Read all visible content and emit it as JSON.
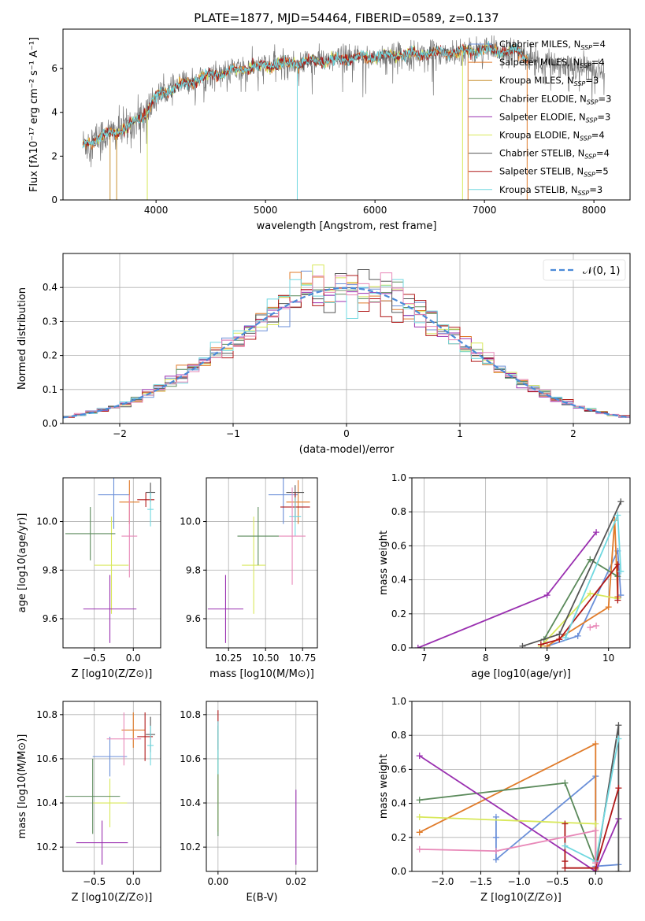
{
  "title": "PLATE=1877, MJD=54464, FIBERID=0589, z=0.137",
  "colors": {
    "Chabrier MILES": "#6a8fd8",
    "Salpeter MILES": "#e07b2a",
    "Kroupa MILES": "#c89030",
    "Chabrier ELODIE": "#5b8a5b",
    "Salpeter ELODIE": "#9a30b0",
    "Kroupa ELODIE": "#d8e85a",
    "Chabrier STELIB": "#555555",
    "Salpeter STELIB": "#b01818",
    "Kroupa STELIB": "#70d8e0",
    "Pink": "#e888b8",
    "Gauss": "#4a8ad8"
  },
  "chart_data": [
    {
      "type": "line",
      "id": "spectrum",
      "title": "PLATE=1877, MJD=54464, FIBERID=0589, z=0.137",
      "xlabel": "wavelength [Angstrom, rest frame]",
      "ylabel": "Flux [fλ10⁻¹⁷ erg cm⁻² s⁻¹ A⁻¹]",
      "xlim": [
        3150,
        8330
      ],
      "ylim": [
        0,
        7.8
      ],
      "xticks": [
        "4000",
        "5000",
        "6000",
        "7000",
        "8000"
      ],
      "yticks": [
        "0",
        "2",
        "4",
        "6"
      ],
      "legend_position": "right",
      "legend": [
        {
          "prefix": "Chabrier MILES, N",
          "sub": "SSP",
          "suffix": "=4"
        },
        {
          "prefix": "Salpeter MILES, N",
          "sub": "SSP",
          "suffix": "=4"
        },
        {
          "prefix": "Kroupa MILES, N",
          "sub": "SSP",
          "suffix": "=3"
        },
        {
          "prefix": "Chabrier ELODIE, N",
          "sub": "SSP",
          "suffix": "=3"
        },
        {
          "prefix": "Salpeter ELODIE, N",
          "sub": "SSP",
          "suffix": "=3"
        },
        {
          "prefix": "Kroupa ELODIE, N",
          "sub": "SSP",
          "suffix": "=4"
        },
        {
          "prefix": "Chabrier STELIB, N",
          "sub": "SSP",
          "suffix": "=4"
        },
        {
          "prefix": "Salpeter STELIB, N",
          "sub": "SSP",
          "suffix": "=5"
        },
        {
          "prefix": "Kroupa STELIB, N",
          "sub": "SSP",
          "suffix": "=3"
        }
      ],
      "continuum": {
        "x": [
          3330,
          3500,
          3700,
          3900,
          4000,
          4200,
          4500,
          5000,
          5500,
          6000,
          6500,
          7000,
          7300,
          7500,
          8000,
          8100
        ],
        "y": [
          2.5,
          2.9,
          3.2,
          3.9,
          4.7,
          5.2,
          5.7,
          6.15,
          6.35,
          6.55,
          6.7,
          6.85,
          6.75,
          6.3,
          6.0,
          5.9
        ]
      },
      "data_range": [
        3330,
        8100
      ],
      "model_range": [
        3330,
        7400
      ],
      "dips": [
        {
          "x": 3580,
          "y": 0,
          "series": "Kroupa MILES"
        },
        {
          "x": 3640,
          "y": 0,
          "series": "Kroupa MILES"
        },
        {
          "x": 3920,
          "y": 0,
          "series": "Kroupa ELODIE"
        },
        {
          "x": 5290,
          "y": 0,
          "series": "Kroupa STELIB"
        },
        {
          "x": 6800,
          "y": 0,
          "series": "Kroupa ELODIE"
        },
        {
          "x": 6850,
          "y": 0,
          "series": "Salpeter MILES"
        },
        {
          "x": 7390,
          "y": 0,
          "series": "Salpeter MILES"
        }
      ]
    },
    {
      "type": "histogram",
      "id": "residuals",
      "xlabel": "(data-model)/error",
      "ylabel": "Normed distribution",
      "xlim": [
        -2.5,
        2.5
      ],
      "ylim": [
        0,
        0.5
      ],
      "xticks": [
        "−2",
        "−1",
        "0",
        "1",
        "2"
      ],
      "yticks": [
        "0.0",
        "0.1",
        "0.2",
        "0.3",
        "0.4"
      ],
      "legend_position": "upper right",
      "legend": [
        {
          "label": "𝒩(0, 1)",
          "series": "Gauss",
          "style": "dashed"
        }
      ],
      "bin_width": 0.1,
      "series_colors": [
        "Chabrier MILES",
        "Salpeter MILES",
        "Chabrier ELODIE",
        "Salpeter ELODIE",
        "Kroupa ELODIE",
        "Chabrier STELIB",
        "Salpeter STELIB",
        "Kroupa STELIB",
        "Pink"
      ]
    },
    {
      "type": "scatter",
      "id": "age_vs_Z",
      "xlabel": "Z [log10(Z/Z⊙)]",
      "ylabel": "age  [log10(age/yr)]",
      "xlim": [
        -0.9,
        0.35
      ],
      "ylim": [
        9.48,
        10.18
      ],
      "xticks": [
        "−0.5",
        "0.0"
      ],
      "yticks": [
        "9.6",
        "9.8",
        "10.0"
      ],
      "points": [
        {
          "series": "Chabrier MILES",
          "x": -0.25,
          "y": 10.11,
          "xerr": 0.2,
          "yerr": 0.14
        },
        {
          "series": "Salpeter MILES",
          "x": -0.05,
          "y": 10.08,
          "xerr": 0.13,
          "yerr": 0.09
        },
        {
          "series": "Kroupa ELODIE",
          "x": -0.28,
          "y": 9.82,
          "xerr": 0.22,
          "yerr": 0.2
        },
        {
          "series": "Chabrier ELODIE",
          "x": -0.55,
          "y": 9.95,
          "xerr": 0.32,
          "yerr": 0.11
        },
        {
          "series": "Salpeter ELODIE",
          "x": -0.3,
          "y": 9.64,
          "xerr": 0.34,
          "yerr": 0.14
        },
        {
          "series": "Chabrier STELIB",
          "x": 0.22,
          "y": 10.12,
          "xerr": 0.06,
          "yerr": 0.04
        },
        {
          "series": "Salpeter STELIB",
          "x": 0.16,
          "y": 10.09,
          "xerr": 0.11,
          "yerr": 0.03
        },
        {
          "series": "Kroupa STELIB",
          "x": 0.22,
          "y": 10.05,
          "xerr": 0.04,
          "yerr": 0.07
        },
        {
          "series": "Pink",
          "x": -0.05,
          "y": 9.94,
          "xerr": 0.1,
          "yerr": 0.17
        }
      ]
    },
    {
      "type": "scatter",
      "id": "age_vs_mass",
      "xlabel": "mass [log10(M/M⊙)]",
      "ylabel": "",
      "xlim": [
        10.1,
        10.85
      ],
      "ylim": [
        9.48,
        10.18
      ],
      "xticks": [
        "10.25",
        "10.50",
        "10.75"
      ],
      "yticks": [
        "9.6",
        "9.8",
        "10.0"
      ],
      "points": [
        {
          "series": "Chabrier MILES",
          "x": 10.62,
          "y": 10.11,
          "xerr": 0.1,
          "yerr": 0.12
        },
        {
          "series": "Salpeter MILES",
          "x": 10.72,
          "y": 10.08,
          "xerr": 0.08,
          "yerr": 0.09
        },
        {
          "series": "Kroupa ELODIE",
          "x": 10.42,
          "y": 9.82,
          "xerr": 0.08,
          "yerr": 0.2
        },
        {
          "series": "Chabrier ELODIE",
          "x": 10.45,
          "y": 9.94,
          "xerr": 0.14,
          "yerr": 0.12
        },
        {
          "series": "Salpeter ELODIE",
          "x": 10.23,
          "y": 9.64,
          "xerr": 0.12,
          "yerr": 0.14
        },
        {
          "series": "Chabrier STELIB",
          "x": 10.7,
          "y": 10.12,
          "xerr": 0.06,
          "yerr": 0.03
        },
        {
          "series": "Salpeter STELIB",
          "x": 10.7,
          "y": 10.06,
          "xerr": 0.1,
          "yerr": 0.06
        },
        {
          "series": "Kroupa STELIB",
          "x": 10.7,
          "y": 10.02,
          "xerr": 0.04,
          "yerr": 0.08
        },
        {
          "series": "Pink",
          "x": 10.68,
          "y": 9.94,
          "xerr": 0.09,
          "yerr": 0.2
        }
      ]
    },
    {
      "type": "line",
      "id": "weight_vs_age",
      "xlabel": "age  [log10(age/yr)]",
      "ylabel": "mass weight",
      "xlim": [
        6.8,
        10.35
      ],
      "ylim": [
        0,
        1.0
      ],
      "xticks": [
        "7",
        "8",
        "9",
        "10"
      ],
      "yticks": [
        "0.0",
        "0.2",
        "0.4",
        "0.6",
        "0.8",
        "1.0"
      ],
      "series": [
        {
          "name": "Chabrier MILES",
          "x": [
            9.0,
            9.5,
            10.15,
            10.2
          ],
          "y": [
            0.01,
            0.07,
            0.57,
            0.31
          ]
        },
        {
          "name": "Salpeter MILES",
          "x": [
            9.0,
            10.0,
            10.1,
            10.15
          ],
          "y": [
            0.01,
            0.24,
            0.75,
            0.3
          ]
        },
        {
          "name": "Chabrier ELODIE",
          "x": [
            8.95,
            9.7,
            10.15
          ],
          "y": [
            0.05,
            0.52,
            0.42
          ]
        },
        {
          "name": "Salpeter ELODIE",
          "x": [
            6.9,
            9.0,
            9.8
          ],
          "y": [
            0.0,
            0.31,
            0.68
          ]
        },
        {
          "name": "Kroupa ELODIE",
          "x": [
            8.9,
            9.7,
            10.15
          ],
          "y": [
            0.01,
            0.32,
            0.29
          ]
        },
        {
          "name": "Chabrier STELIB",
          "x": [
            8.6,
            9.2,
            10.2
          ],
          "y": [
            0.01,
            0.08,
            0.86
          ]
        },
        {
          "name": "Salpeter STELIB",
          "x": [
            8.9,
            9.2,
            10.15,
            10.15
          ],
          "y": [
            0.02,
            0.05,
            0.49,
            0.28
          ]
        },
        {
          "name": "Kroupa STELIB",
          "x": [
            9.3,
            10.15,
            10.2
          ],
          "y": [
            0.06,
            0.78,
            0.45
          ]
        },
        {
          "name": "Pink",
          "x": [
            9.7,
            9.8
          ],
          "y": [
            0.12,
            0.13
          ]
        }
      ]
    },
    {
      "type": "scatter",
      "id": "mass_vs_Z",
      "xlabel": "Z [log10(Z/Z⊙)]",
      "ylabel": "mass [log10(M/M⊙)]",
      "xlim": [
        -0.9,
        0.35
      ],
      "ylim": [
        10.09,
        10.86
      ],
      "xticks": [
        "−0.5",
        "0.0"
      ],
      "yticks": [
        "10.2",
        "10.4",
        "10.6",
        "10.8"
      ],
      "points": [
        {
          "series": "Chabrier MILES",
          "x": -0.3,
          "y": 10.61,
          "xerr": 0.22,
          "yerr": 0.09
        },
        {
          "series": "Salpeter MILES",
          "x": 0.0,
          "y": 10.73,
          "xerr": 0.15,
          "yerr": 0.08
        },
        {
          "series": "Kroupa ELODIE",
          "x": -0.3,
          "y": 10.4,
          "xerr": 0.22,
          "yerr": 0.11
        },
        {
          "series": "Chabrier ELODIE",
          "x": -0.52,
          "y": 10.43,
          "xerr": 0.35,
          "yerr": 0.17
        },
        {
          "series": "Salpeter ELODIE",
          "x": -0.4,
          "y": 10.22,
          "xerr": 0.33,
          "yerr": 0.1
        },
        {
          "series": "Chabrier STELIB",
          "x": 0.22,
          "y": 10.71,
          "xerr": 0.06,
          "yerr": 0.08
        },
        {
          "series": "Salpeter STELIB",
          "x": 0.15,
          "y": 10.7,
          "xerr": 0.1,
          "yerr": 0.11
        },
        {
          "series": "Kroupa STELIB",
          "x": 0.22,
          "y": 10.66,
          "xerr": 0.04,
          "yerr": 0.09
        },
        {
          "series": "Pink",
          "x": -0.12,
          "y": 10.69,
          "xerr": 0.22,
          "yerr": 0.12
        }
      ]
    },
    {
      "type": "scatter",
      "id": "mass_vs_ebv",
      "xlabel": "E(B-V)",
      "ylabel": "",
      "xlim": [
        -0.003,
        0.0255
      ],
      "ylim": [
        10.09,
        10.86
      ],
      "xticks": [
        "0.00",
        "0.02"
      ],
      "yticks": [
        "10.2",
        "10.4",
        "10.6",
        "10.8"
      ],
      "points": [
        {
          "series": "Salpeter ELODIE",
          "x": 0.02,
          "y": 10.29,
          "xerr": 0,
          "yerr": 0.17
        },
        {
          "series": "Salpeter STELIB",
          "x": 0.0,
          "y": 10.73,
          "xerr": 0,
          "yerr": 0.09
        },
        {
          "series": "Kroupa ELODIE",
          "x": 0.0,
          "y": 10.44,
          "xerr": 0,
          "yerr": 0.17
        },
        {
          "series": "Chabrier ELODIE",
          "x": 0.0,
          "y": 10.5,
          "xerr": 0,
          "yerr": 0.25
        },
        {
          "series": "Kroupa STELIB",
          "x": 0.0,
          "y": 10.65,
          "xerr": 0,
          "yerr": 0.12
        }
      ]
    },
    {
      "type": "line",
      "id": "weight_vs_Z",
      "xlabel": "Z [log10(Z/Z⊙)]",
      "ylabel": "mass weight",
      "xlim": [
        -2.4,
        0.45
      ],
      "ylim": [
        0,
        1.0
      ],
      "xticks": [
        "−2.0",
        "−1.5",
        "−1.0",
        "−0.5",
        "0.0"
      ],
      "yticks": [
        "0.0",
        "0.2",
        "0.4",
        "0.6",
        "0.8",
        "1.0"
      ],
      "series": [
        {
          "name": "Chabrier MILES",
          "x": [
            -1.3,
            -1.3,
            -1.3,
            0.0,
            0.0,
            0.3
          ],
          "y": [
            0.32,
            0.2,
            0.07,
            0.56,
            0.03,
            0.04
          ]
        },
        {
          "name": "Salpeter MILES",
          "x": [
            -2.3,
            0.0,
            0.0
          ],
          "y": [
            0.23,
            0.75,
            0.01
          ]
        },
        {
          "name": "Chabrier ELODIE",
          "x": [
            -2.3,
            -0.4,
            0.0
          ],
          "y": [
            0.42,
            0.52,
            0.05
          ]
        },
        {
          "name": "Salpeter ELODIE",
          "x": [
            -2.3,
            0.0,
            0.3
          ],
          "y": [
            0.68,
            0.0,
            0.31
          ]
        },
        {
          "name": "Kroupa ELODIE",
          "x": [
            -2.3,
            0.0,
            0.0
          ],
          "y": [
            0.32,
            0.28,
            0.02
          ]
        },
        {
          "name": "Chabrier STELIB",
          "x": [
            0.0,
            0.3,
            0.3
          ],
          "y": [
            0.02,
            0.86,
            0.0
          ]
        },
        {
          "name": "Salpeter STELIB",
          "x": [
            -0.4,
            -0.4,
            -0.4,
            0.0,
            0.3
          ],
          "y": [
            0.28,
            0.06,
            0.02,
            0.02,
            0.49
          ]
        },
        {
          "name": "Kroupa STELIB",
          "x": [
            -0.4,
            0.0,
            0.3
          ],
          "y": [
            0.15,
            0.06,
            0.78
          ]
        },
        {
          "name": "Pink",
          "x": [
            -2.3,
            -1.3,
            0.0,
            0.0
          ],
          "y": [
            0.13,
            0.12,
            0.24,
            0.05
          ]
        }
      ]
    }
  ]
}
